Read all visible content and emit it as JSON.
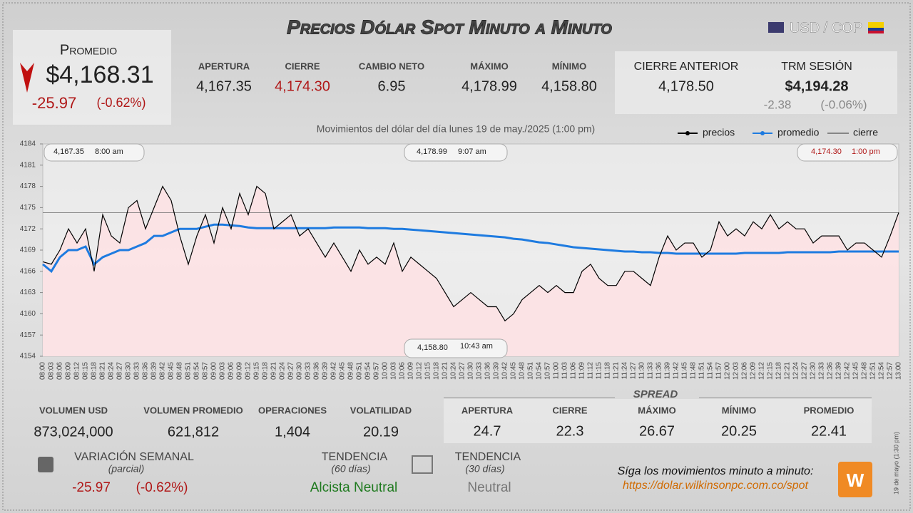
{
  "header": {
    "title": "Precios Dólar Spot Minuto a Minuto",
    "pair": "USD / COP"
  },
  "promedio": {
    "label": "Promedio",
    "value": "$4,168.31",
    "change": "-25.97",
    "change_pct": "(-0.62%)"
  },
  "session": [
    {
      "label": "APERTURA",
      "value": "4,167.35"
    },
    {
      "label": "CIERRE",
      "value": "4,174.30"
    },
    {
      "label": "CAMBIO NETO",
      "value": "6.95"
    },
    {
      "label": "MÁXIMO",
      "value": "4,178.99"
    },
    {
      "label": "MÍNIMO",
      "value": "4,158.80"
    }
  ],
  "previous": {
    "close_label": "CIERRE ANTERIOR",
    "close_value": "4,178.50",
    "trm_label": "TRM SESIÓN",
    "trm_value": "$4,194.28",
    "trm_change": "-2.38",
    "trm_change_pct": "(-0.06%)"
  },
  "chart_data": {
    "type": "line",
    "subtitle": "Movimientos del dólar del día lunes 19 de may./2025 (1:00 pm)",
    "categories": [
      "08:00",
      "08:03",
      "08:06",
      "08:09",
      "08:12",
      "08:15",
      "08:18",
      "08:21",
      "08:24",
      "08:27",
      "08:30",
      "08:33",
      "08:36",
      "08:39",
      "08:42",
      "08:45",
      "08:48",
      "08:51",
      "08:54",
      "08:57",
      "09:00",
      "09:03",
      "09:06",
      "09:09",
      "09:12",
      "09:15",
      "09:18",
      "09:21",
      "09:24",
      "09:27",
      "09:30",
      "09:33",
      "09:36",
      "09:39",
      "09:42",
      "09:45",
      "09:48",
      "09:51",
      "09:54",
      "09:57",
      "10:00",
      "10:03",
      "10:06",
      "10:09",
      "10:12",
      "10:15",
      "10:18",
      "10:21",
      "10:24",
      "10:27",
      "10:30",
      "10:33",
      "10:36",
      "10:39",
      "10:42",
      "10:45",
      "10:48",
      "10:51",
      "10:54",
      "10:57",
      "11:00",
      "11:03",
      "11:06",
      "11:09",
      "11:12",
      "11:15",
      "11:18",
      "11:21",
      "11:24",
      "11:27",
      "11:30",
      "11:33",
      "11:36",
      "11:39",
      "11:42",
      "11:45",
      "11:48",
      "11:51",
      "11:54",
      "11:57",
      "12:00",
      "12:03",
      "12:06",
      "12:09",
      "12:12",
      "12:15",
      "12:18",
      "12:21",
      "12:24",
      "12:27",
      "12:30",
      "12:33",
      "12:36",
      "12:39",
      "12:42",
      "12:45",
      "12:48",
      "12:51",
      "12:54",
      "12:57",
      "13:00"
    ],
    "series": [
      {
        "name": "precios",
        "color": "#000000",
        "values": [
          4167.35,
          4167,
          4169,
          4172,
          4170,
          4172,
          4166,
          4174,
          4171,
          4170,
          4175,
          4176,
          4172,
          4175,
          4178,
          4176,
          4171,
          4167,
          4171,
          4174,
          4170,
          4175,
          4172,
          4177,
          4174,
          4178,
          4177,
          4172,
          4173,
          4174,
          4171,
          4172,
          4170,
          4168,
          4170,
          4168,
          4166,
          4169,
          4167,
          4168,
          4167,
          4170,
          4166,
          4168,
          4167,
          4166,
          4165,
          4163,
          4161,
          4162,
          4163,
          4162,
          4161,
          4161,
          4159,
          4160,
          4162,
          4163,
          4164,
          4163,
          4164,
          4163,
          4163,
          4166,
          4167,
          4165,
          4164,
          4164,
          4166,
          4166,
          4165,
          4164,
          4168,
          4171,
          4169,
          4170,
          4170,
          4168,
          4169,
          4173,
          4171,
          4172,
          4171,
          4173,
          4172,
          4174,
          4172,
          4173,
          4172,
          4172,
          4170,
          4171,
          4171,
          4171,
          4169,
          4170,
          4170,
          4169,
          4168,
          4171,
          4174.3
        ]
      },
      {
        "name": "promedio",
        "color": "#1e7be0",
        "values": [
          4167,
          4166,
          4168,
          4169,
          4169,
          4169.5,
          4167,
          4168,
          4168.5,
          4169,
          4169,
          4169.5,
          4170,
          4171,
          4171,
          4171.5,
          4172,
          4172,
          4172,
          4172.3,
          4172.6,
          4172.6,
          4172.5,
          4172.4,
          4172.2,
          4172.1,
          4172.1,
          4172.1,
          4172.1,
          4172.1,
          4172.1,
          4172.1,
          4172.1,
          4172.1,
          4172.2,
          4172.2,
          4172.2,
          4172.2,
          4172.1,
          4172.1,
          4172.1,
          4172,
          4172,
          4171.9,
          4171.8,
          4171.7,
          4171.6,
          4171.5,
          4171.4,
          4171.3,
          4171.2,
          4171.1,
          4171,
          4170.9,
          4170.8,
          4170.6,
          4170.5,
          4170.3,
          4170.1,
          4170,
          4169.8,
          4169.6,
          4169.4,
          4169.3,
          4169.2,
          4169.1,
          4169,
          4168.9,
          4168.8,
          4168.8,
          4168.7,
          4168.7,
          4168.6,
          4168.6,
          4168.5,
          4168.5,
          4168.5,
          4168.5,
          4168.5,
          4168.5,
          4168.5,
          4168.5,
          4168.6,
          4168.6,
          4168.6,
          4168.6,
          4168.6,
          4168.7,
          4168.7,
          4168.7,
          4168.7,
          4168.7,
          4168.7,
          4168.8,
          4168.8,
          4168.8,
          4168.8,
          4168.8,
          4168.8,
          4168.8,
          4168.8
        ]
      }
    ],
    "reference_lines": [
      {
        "name": "cierre",
        "value": 4174.3
      }
    ],
    "area_color": "#fde2e4",
    "ylim": [
      4154,
      4184
    ],
    "yticks": [
      4154,
      4157,
      4160,
      4163,
      4166,
      4169,
      4172,
      4175,
      4178,
      4181,
      4184
    ],
    "annotations": [
      {
        "value": "4,167.35",
        "time": "8:00 am"
      },
      {
        "value": "4,178.99",
        "time": "9:07 am"
      },
      {
        "value": "4,174.30",
        "time": "1:00 pm"
      },
      {
        "value": "4,158.80",
        "time": "10:43 am"
      }
    ]
  },
  "volume": [
    {
      "label": "VOLUMEN USD",
      "value": "873,024,000"
    },
    {
      "label": "VOLUMEN PROMEDIO",
      "value": "621,812"
    },
    {
      "label": "OPERACIONES",
      "value": "1,404"
    },
    {
      "label": "VOLATILIDAD",
      "value": "20.19"
    }
  ],
  "spread": {
    "title": "SPREAD",
    "columns": [
      {
        "label": "APERTURA",
        "value": "24.7"
      },
      {
        "label": "CIERRE",
        "value": "22.3"
      },
      {
        "label": "MÁXIMO",
        "value": "26.67"
      },
      {
        "label": "MÍNIMO",
        "value": "20.25"
      },
      {
        "label": "PROMEDIO",
        "value": "22.41"
      }
    ]
  },
  "weekly": {
    "label": "VARIACIÓN SEMANAL",
    "note": "(parcial)",
    "change": "-25.97",
    "change_pct": "(-0.62%)"
  },
  "trends": [
    {
      "label": "TENDENCIA",
      "note": "(60 días)",
      "value": "Alcista Neutral"
    },
    {
      "label": "TENDENCIA",
      "note": "(30 días)",
      "value": "Neutral"
    }
  ],
  "footer": {
    "cta": "Síga los movimientos minuto a minuto:",
    "url": "https://dolar.wilkinsonpc.com.co/spot",
    "stamp": "19 de mayo (1:30 pm)"
  }
}
